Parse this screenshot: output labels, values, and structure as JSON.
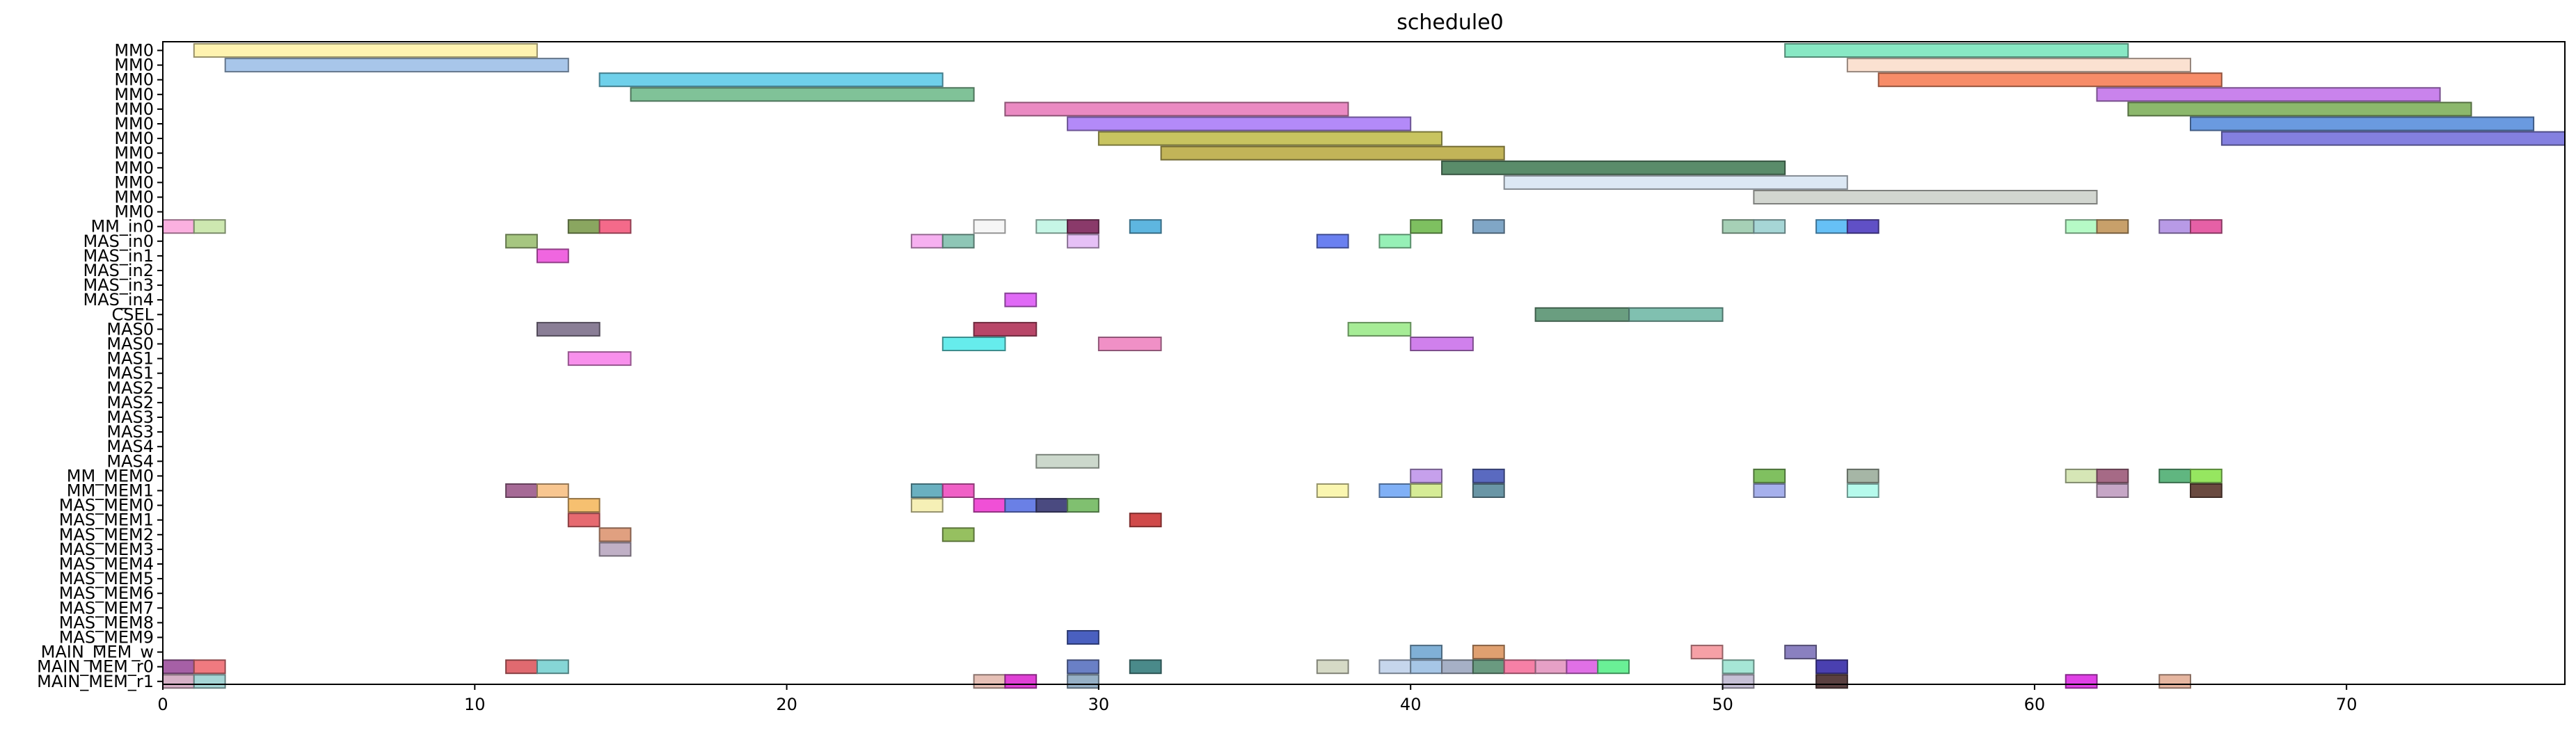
{
  "chart_data": {
    "type": "gantt",
    "title": "schedule0",
    "xlabel": "",
    "ylabel": "",
    "xlim": [
      0,
      77
    ],
    "xticks": [
      0,
      10,
      20,
      30,
      40,
      50,
      60,
      70
    ],
    "grid": false,
    "rows": [
      "MM0",
      "MM0",
      "MM0",
      "MM0",
      "MM0",
      "MM0",
      "MM0",
      "MM0",
      "MM0",
      "MM0",
      "MM0",
      "MM0",
      "MM_in0",
      "MAS_in0",
      "MAS_in1",
      "MAS_in2",
      "MAS_in3",
      "MAS_in4",
      "CSEL",
      "MAS0",
      "MAS0",
      "MAS1",
      "MAS1",
      "MAS2",
      "MAS2",
      "MAS3",
      "MAS3",
      "MAS4",
      "MAS4",
      "MM_MEM0",
      "MM_MEM1",
      "MAS_MEM0",
      "MAS_MEM1",
      "MAS_MEM2",
      "MAS_MEM3",
      "MAS_MEM4",
      "MAS_MEM5",
      "MAS_MEM6",
      "MAS_MEM7",
      "MAS_MEM8",
      "MAS_MEM9",
      "MAIN_MEM_w",
      "MAIN_MEM_r0",
      "MAIN_MEM_r1"
    ],
    "tasks": [
      {
        "row": 0,
        "start": 1,
        "end": 12,
        "color": "#fff3b0"
      },
      {
        "row": 0,
        "start": 52,
        "end": 63,
        "color": "#88e8c4"
      },
      {
        "row": 1,
        "start": 2,
        "end": 13,
        "color": "#a8c6ea"
      },
      {
        "row": 1,
        "start": 54,
        "end": 65,
        "color": "#fbe1d1"
      },
      {
        "row": 2,
        "start": 14,
        "end": 25,
        "color": "#6fd0ea"
      },
      {
        "row": 2,
        "start": 55,
        "end": 66,
        "color": "#f78c68"
      },
      {
        "row": 3,
        "start": 15,
        "end": 26,
        "color": "#80c298"
      },
      {
        "row": 3,
        "start": 62,
        "end": 73,
        "color": "#c983ec"
      },
      {
        "row": 4,
        "start": 27,
        "end": 38,
        "color": "#ea8ac2"
      },
      {
        "row": 4,
        "start": 63,
        "end": 74,
        "color": "#8cb86c"
      },
      {
        "row": 5,
        "start": 29,
        "end": 40,
        "color": "#b38af8"
      },
      {
        "row": 5,
        "start": 65,
        "end": 76,
        "color": "#6a9ae0"
      },
      {
        "row": 6,
        "start": 30,
        "end": 41,
        "color": "#c8c460"
      },
      {
        "row": 6,
        "start": 66,
        "end": 77,
        "color": "#8480e0"
      },
      {
        "row": 7,
        "start": 32,
        "end": 43,
        "color": "#c2b458"
      },
      {
        "row": 8,
        "start": 41,
        "end": 52,
        "color": "#5a8c6a"
      },
      {
        "row": 9,
        "start": 43,
        "end": 54,
        "color": "#dce8f4"
      },
      {
        "row": 10,
        "start": 51,
        "end": 62,
        "color": "#d2d6d0"
      },
      {
        "row": 12,
        "start": 0,
        "end": 1,
        "color": "#fbb0e0"
      },
      {
        "row": 12,
        "start": 1,
        "end": 2,
        "color": "#cde8b0"
      },
      {
        "row": 12,
        "start": 13,
        "end": 14,
        "color": "#8aa660"
      },
      {
        "row": 12,
        "start": 14,
        "end": 15,
        "color": "#f46a8a"
      },
      {
        "row": 12,
        "start": 26,
        "end": 27,
        "color": "#f6f6f6"
      },
      {
        "row": 12,
        "start": 28,
        "end": 29,
        "color": "#c6f6e6"
      },
      {
        "row": 12,
        "start": 29,
        "end": 30,
        "color": "#8a3a6a"
      },
      {
        "row": 12,
        "start": 31,
        "end": 32,
        "color": "#5eb6e0"
      },
      {
        "row": 12,
        "start": 40,
        "end": 41,
        "color": "#7ec060"
      },
      {
        "row": 12,
        "start": 42,
        "end": 43,
        "color": "#80a6c6"
      },
      {
        "row": 12,
        "start": 50,
        "end": 51,
        "color": "#a6d0b6"
      },
      {
        "row": 12,
        "start": 51,
        "end": 52,
        "color": "#a6d6d6"
      },
      {
        "row": 12,
        "start": 53,
        "end": 54,
        "color": "#66c0f6"
      },
      {
        "row": 12,
        "start": 54,
        "end": 55,
        "color": "#6050c6"
      },
      {
        "row": 12,
        "start": 61,
        "end": 62,
        "color": "#b6fac6"
      },
      {
        "row": 12,
        "start": 62,
        "end": 63,
        "color": "#c8a06a"
      },
      {
        "row": 12,
        "start": 64,
        "end": 65,
        "color": "#b89ae6"
      },
      {
        "row": 12,
        "start": 65,
        "end": 66,
        "color": "#e660a6"
      },
      {
        "row": 13,
        "start": 11,
        "end": 12,
        "color": "#a6c680"
      },
      {
        "row": 13,
        "start": 24,
        "end": 25,
        "color": "#f6b0f0"
      },
      {
        "row": 13,
        "start": 25,
        "end": 26,
        "color": "#8ec6b6"
      },
      {
        "row": 13,
        "start": 29,
        "end": 30,
        "color": "#e6c0f6"
      },
      {
        "row": 13,
        "start": 37,
        "end": 38,
        "color": "#6a80f0"
      },
      {
        "row": 13,
        "start": 39,
        "end": 40,
        "color": "#96f0b6"
      },
      {
        "row": 14,
        "start": 12,
        "end": 13,
        "color": "#f066e0"
      },
      {
        "row": 17,
        "start": 27,
        "end": 28,
        "color": "#e06af6"
      },
      {
        "row": 18,
        "start": 44,
        "end": 47,
        "color": "#6a9e80"
      },
      {
        "row": 18,
        "start": 47,
        "end": 50,
        "color": "#80c0b0"
      },
      {
        "row": 19,
        "start": 12,
        "end": 14,
        "color": "#8a7e96"
      },
      {
        "row": 19,
        "start": 26,
        "end": 28,
        "color": "#b84668"
      },
      {
        "row": 19,
        "start": 38,
        "end": 40,
        "color": "#a6ec96"
      },
      {
        "row": 20,
        "start": 25,
        "end": 27,
        "color": "#66ecec"
      },
      {
        "row": 20,
        "start": 30,
        "end": 32,
        "color": "#f090c6"
      },
      {
        "row": 20,
        "start": 40,
        "end": 42,
        "color": "#d080ec"
      },
      {
        "row": 21,
        "start": 13,
        "end": 15,
        "color": "#f890ec"
      },
      {
        "row": 28,
        "start": 28,
        "end": 30,
        "color": "#ccd8cc"
      },
      {
        "row": 29,
        "start": 40,
        "end": 41,
        "color": "#c6a0ec"
      },
      {
        "row": 29,
        "start": 42,
        "end": 43,
        "color": "#5a6ac0"
      },
      {
        "row": 29,
        "start": 51,
        "end": 52,
        "color": "#80c060"
      },
      {
        "row": 29,
        "start": 54,
        "end": 55,
        "color": "#a6b6a6"
      },
      {
        "row": 29,
        "start": 61,
        "end": 62,
        "color": "#d6e6b6"
      },
      {
        "row": 29,
        "start": 62,
        "end": 63,
        "color": "#a66a86"
      },
      {
        "row": 29,
        "start": 64,
        "end": 65,
        "color": "#60b680"
      },
      {
        "row": 29,
        "start": 65,
        "end": 66,
        "color": "#96e660"
      },
      {
        "row": 30,
        "start": 11,
        "end": 12,
        "color": "#a66a96"
      },
      {
        "row": 30,
        "start": 12,
        "end": 13,
        "color": "#f8c690"
      },
      {
        "row": 30,
        "start": 24,
        "end": 25,
        "color": "#6ab0c0"
      },
      {
        "row": 30,
        "start": 25,
        "end": 26,
        "color": "#f060c6"
      },
      {
        "row": 30,
        "start": 37,
        "end": 38,
        "color": "#faf6b0"
      },
      {
        "row": 30,
        "start": 39,
        "end": 40,
        "color": "#80b0f6"
      },
      {
        "row": 30,
        "start": 40,
        "end": 41,
        "color": "#d6ec96"
      },
      {
        "row": 30,
        "start": 42,
        "end": 43,
        "color": "#6a96a6"
      },
      {
        "row": 30,
        "start": 51,
        "end": 52,
        "color": "#a6b0ec"
      },
      {
        "row": 30,
        "start": 54,
        "end": 55,
        "color": "#b6faec"
      },
      {
        "row": 30,
        "start": 62,
        "end": 63,
        "color": "#c6a6c6"
      },
      {
        "row": 30,
        "start": 65,
        "end": 66,
        "color": "#6a4a40"
      },
      {
        "row": 31,
        "start": 13,
        "end": 14,
        "color": "#f6c070"
      },
      {
        "row": 31,
        "start": 24,
        "end": 25,
        "color": "#f6f0b6"
      },
      {
        "row": 31,
        "start": 26,
        "end": 27,
        "color": "#f050d6"
      },
      {
        "row": 31,
        "start": 27,
        "end": 28,
        "color": "#6a80e6"
      },
      {
        "row": 31,
        "start": 28,
        "end": 29,
        "color": "#4a4a80"
      },
      {
        "row": 31,
        "start": 29,
        "end": 30,
        "color": "#80c070"
      },
      {
        "row": 32,
        "start": 13,
        "end": 14,
        "color": "#e66a70"
      },
      {
        "row": 32,
        "start": 31,
        "end": 32,
        "color": "#d04a4a"
      },
      {
        "row": 33,
        "start": 14,
        "end": 15,
        "color": "#e0a080"
      },
      {
        "row": 33,
        "start": 25,
        "end": 26,
        "color": "#96c060"
      },
      {
        "row": 34,
        "start": 14,
        "end": 15,
        "color": "#c0b0c6"
      },
      {
        "row": 40,
        "start": 29,
        "end": 30,
        "color": "#4a60c0"
      },
      {
        "row": 41,
        "start": 40,
        "end": 41,
        "color": "#80b0d6"
      },
      {
        "row": 41,
        "start": 42,
        "end": 43,
        "color": "#e0a070"
      },
      {
        "row": 41,
        "start": 49,
        "end": 50,
        "color": "#f6a0a6"
      },
      {
        "row": 41,
        "start": 52,
        "end": 53,
        "color": "#8a80c0"
      },
      {
        "row": 42,
        "start": 0,
        "end": 1,
        "color": "#a660a6"
      },
      {
        "row": 42,
        "start": 1,
        "end": 2,
        "color": "#f07a80"
      },
      {
        "row": 42,
        "start": 11,
        "end": 12,
        "color": "#e06a70"
      },
      {
        "row": 42,
        "start": 12,
        "end": 13,
        "color": "#86d6d6"
      },
      {
        "row": 42,
        "start": 29,
        "end": 30,
        "color": "#6a80c6"
      },
      {
        "row": 42,
        "start": 31,
        "end": 32,
        "color": "#4a8a8a"
      },
      {
        "row": 42,
        "start": 37,
        "end": 38,
        "color": "#d6dac6"
      },
      {
        "row": 42,
        "start": 39,
        "end": 40,
        "color": "#c6d6ec"
      },
      {
        "row": 42,
        "start": 40,
        "end": 41,
        "color": "#a6c6e6"
      },
      {
        "row": 42,
        "start": 41,
        "end": 42,
        "color": "#a6b0c6"
      },
      {
        "row": 42,
        "start": 42,
        "end": 43,
        "color": "#6a9a80"
      },
      {
        "row": 42,
        "start": 43,
        "end": 44,
        "color": "#f680a6"
      },
      {
        "row": 42,
        "start": 44,
        "end": 45,
        "color": "#e6a0c6"
      },
      {
        "row": 42,
        "start": 45,
        "end": 46,
        "color": "#e070e6"
      },
      {
        "row": 42,
        "start": 46,
        "end": 47,
        "color": "#6af096"
      },
      {
        "row": 42,
        "start": 50,
        "end": 51,
        "color": "#a6e6d6"
      },
      {
        "row": 42,
        "start": 53,
        "end": 54,
        "color": "#4a40b0"
      },
      {
        "row": 43,
        "start": 0,
        "end": 1,
        "color": "#d6b0c6"
      },
      {
        "row": 43,
        "start": 1,
        "end": 2,
        "color": "#a6d6d6"
      },
      {
        "row": 43,
        "start": 26,
        "end": 27,
        "color": "#e6c0b6"
      },
      {
        "row": 43,
        "start": 27,
        "end": 28,
        "color": "#e040d6"
      },
      {
        "row": 43,
        "start": 29,
        "end": 30,
        "color": "#96b0c6"
      },
      {
        "row": 43,
        "start": 50,
        "end": 51,
        "color": "#c6c0d6"
      },
      {
        "row": 43,
        "start": 53,
        "end": 54,
        "color": "#5a4040"
      },
      {
        "row": 43,
        "start": 61,
        "end": 62,
        "color": "#e040e6"
      },
      {
        "row": 43,
        "start": 64,
        "end": 65,
        "color": "#e6b6a0"
      }
    ]
  }
}
